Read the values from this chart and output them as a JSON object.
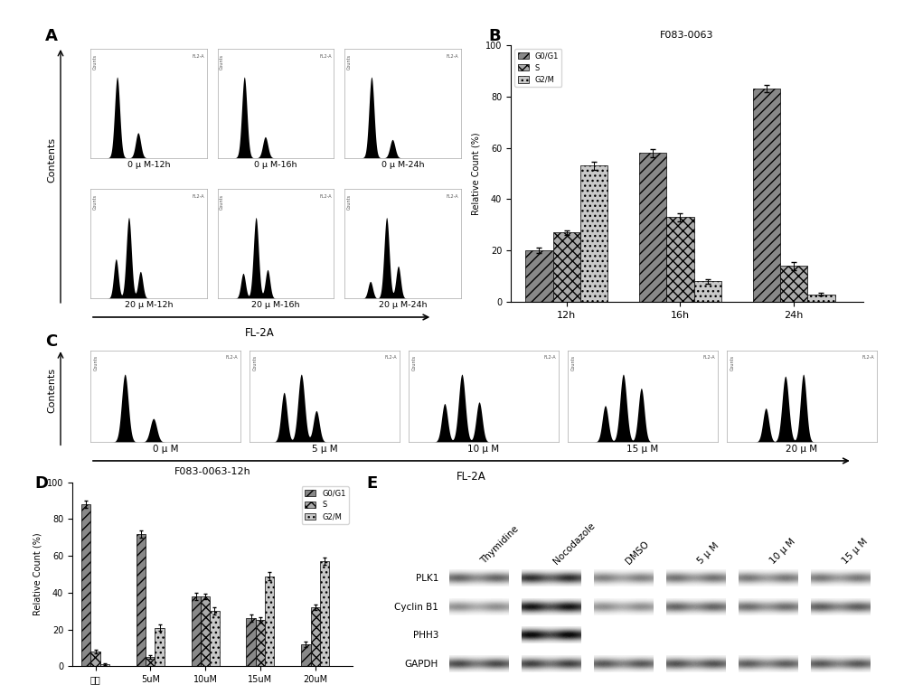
{
  "title_B": "F083-0063",
  "title_D": "F083-0063-12h",
  "ylabel_BD": "Relative Count (%)",
  "xticks_B": [
    "12h",
    "16h",
    "24h"
  ],
  "xticks_D": [
    "空白",
    "5uM",
    "10uM",
    "15uM",
    "20uM"
  ],
  "legend_labels": [
    "G0/G1",
    "S",
    "G2/M"
  ],
  "B_data": {
    "G0G1": [
      20,
      58,
      83
    ],
    "S": [
      27,
      33,
      14
    ],
    "G2M": [
      53,
      8,
      3
    ]
  },
  "D_data": {
    "G0G1": [
      88,
      72,
      38,
      26,
      12
    ],
    "S": [
      8,
      5,
      38,
      25,
      32
    ],
    "G2M": [
      1,
      21,
      30,
      49,
      57
    ]
  },
  "B_errors": {
    "G0G1": [
      1,
      1.5,
      1.5
    ],
    "S": [
      1,
      1.5,
      1.5
    ],
    "G2M": [
      1.5,
      1,
      0.5
    ]
  },
  "D_errors": {
    "G0G1": [
      2,
      2,
      2,
      2,
      1.5
    ],
    "S": [
      1,
      1,
      1.5,
      1.5,
      1.5
    ],
    "G2M": [
      0.5,
      1.5,
      2,
      2,
      2
    ]
  },
  "yticks": [
    0,
    20,
    40,
    60,
    80,
    100
  ],
  "flow_labels_row1": [
    "0 μ M-12h",
    "0 μ M-16h",
    "0 μ M-24h"
  ],
  "flow_labels_row2": [
    "20 μ M-12h",
    "20 μ M-16h",
    "20 μ M-24h"
  ],
  "flow_labels_C": [
    "0 μ M",
    "5 μ M",
    "10 μ M",
    "15 μ M",
    "20 μ M"
  ],
  "xlabel_flow": "FL-2A",
  "ylabel_flow": "Contents",
  "wb_labels": [
    "PLK1",
    "Cyclin B1",
    "PHH3",
    "GAPDH"
  ],
  "wb_columns": [
    "Thymidine",
    "Nocodazole",
    "DMSO",
    "5 μ M",
    "10 μ M",
    "15 μ M"
  ]
}
